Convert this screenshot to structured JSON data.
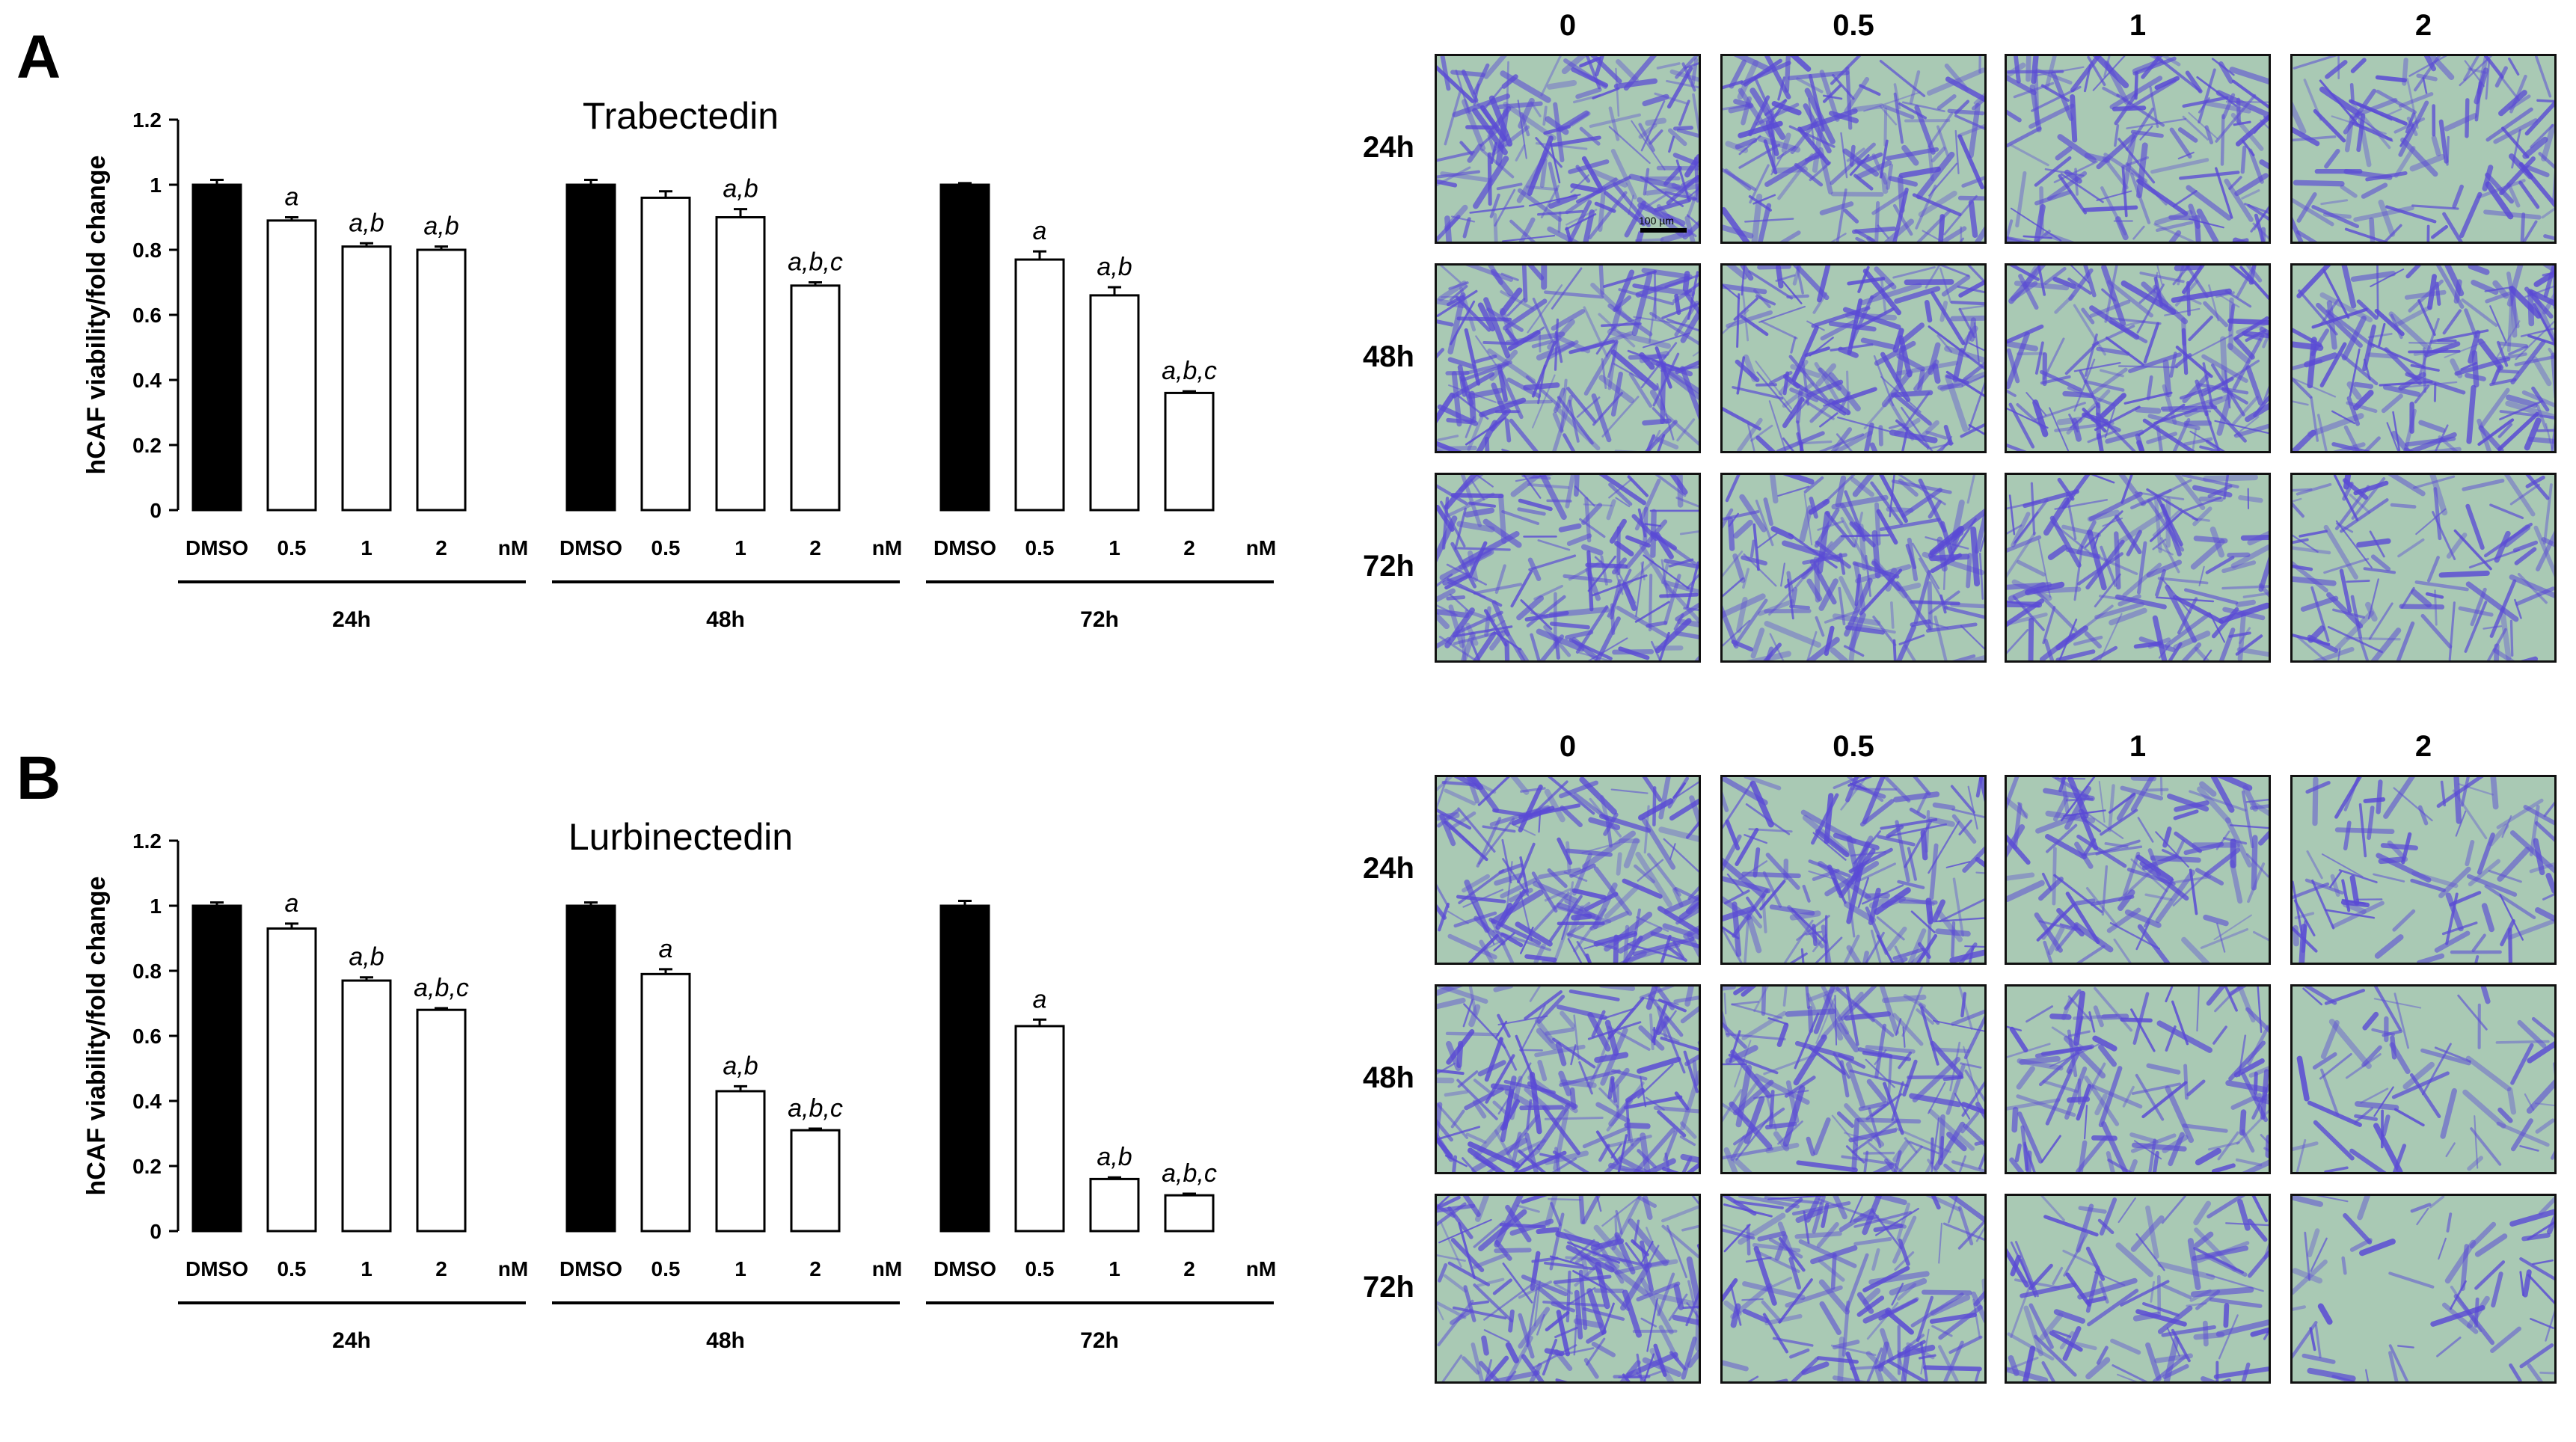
{
  "colors": {
    "dmso_bar": "#000000",
    "drug_bar": "#ffffff",
    "axis": "#000000",
    "stain": "#5a4ad6",
    "background_cells": "#a9c9b4"
  },
  "panels": [
    {
      "letter": "A",
      "micro_columns": [
        "0",
        "0.5",
        "1",
        "2"
      ],
      "micro_rows": [
        "24h",
        "48h",
        "72h"
      ],
      "scale_bar_label": "100 µm"
    },
    {
      "letter": "B",
      "micro_columns": [
        "0",
        "0.5",
        "1",
        "2"
      ],
      "micro_rows": [
        "24h",
        "48h",
        "72h"
      ]
    }
  ],
  "chart_data": [
    {
      "type": "bar",
      "title": "Trabectedin",
      "ylabel": "hCAF viability/fold change",
      "ylim": [
        0,
        1.2
      ],
      "yticks": [
        "0",
        "0.2",
        "0.4",
        "0.6",
        "0.8",
        "1",
        "1.2"
      ],
      "unit_label": "nM",
      "groups": [
        {
          "label": "24h",
          "categories": [
            "DMSO",
            "0.5",
            "1",
            "2"
          ],
          "values": [
            1.0,
            0.89,
            0.81,
            0.8
          ],
          "errors": [
            0.015,
            0.01,
            0.01,
            0.01
          ],
          "annotations": [
            "",
            "a",
            "a,b",
            "a,b"
          ]
        },
        {
          "label": "48h",
          "categories": [
            "DMSO",
            "0.5",
            "1",
            "2"
          ],
          "values": [
            1.0,
            0.96,
            0.9,
            0.69
          ],
          "errors": [
            0.015,
            0.02,
            0.025,
            0.01
          ],
          "annotations": [
            "",
            "",
            "a,b",
            "a,b,c"
          ]
        },
        {
          "label": "72h",
          "categories": [
            "DMSO",
            "0.5",
            "1",
            "2"
          ],
          "values": [
            1.0,
            0.77,
            0.66,
            0.36
          ],
          "errors": [
            0.005,
            0.025,
            0.025,
            0.005
          ],
          "annotations": [
            "",
            "a",
            "a,b",
            "a,b,c"
          ]
        }
      ]
    },
    {
      "type": "bar",
      "title": "Lurbinectedin",
      "ylabel": "hCAF viability/fold change",
      "ylim": [
        0,
        1.2
      ],
      "yticks": [
        "0",
        "0.2",
        "0.4",
        "0.6",
        "0.8",
        "1",
        "1.2"
      ],
      "unit_label": "nM",
      "groups": [
        {
          "label": "24h",
          "categories": [
            "DMSO",
            "0.5",
            "1",
            "2"
          ],
          "values": [
            1.0,
            0.93,
            0.77,
            0.68
          ],
          "errors": [
            0.01,
            0.015,
            0.01,
            0.005
          ],
          "annotations": [
            "",
            "a",
            "a,b",
            "a,b,c"
          ]
        },
        {
          "label": "48h",
          "categories": [
            "DMSO",
            "0.5",
            "1",
            "2"
          ],
          "values": [
            1.0,
            0.79,
            0.43,
            0.31
          ],
          "errors": [
            0.01,
            0.015,
            0.015,
            0.005
          ],
          "annotations": [
            "",
            "a",
            "a,b",
            "a,b,c"
          ]
        },
        {
          "label": "72h",
          "categories": [
            "DMSO",
            "0.5",
            "1",
            "2"
          ],
          "values": [
            1.0,
            0.63,
            0.16,
            0.11
          ],
          "errors": [
            0.015,
            0.02,
            0.005,
            0.005
          ],
          "annotations": [
            "",
            "a",
            "a,b",
            "a,b,c"
          ]
        }
      ]
    }
  ]
}
